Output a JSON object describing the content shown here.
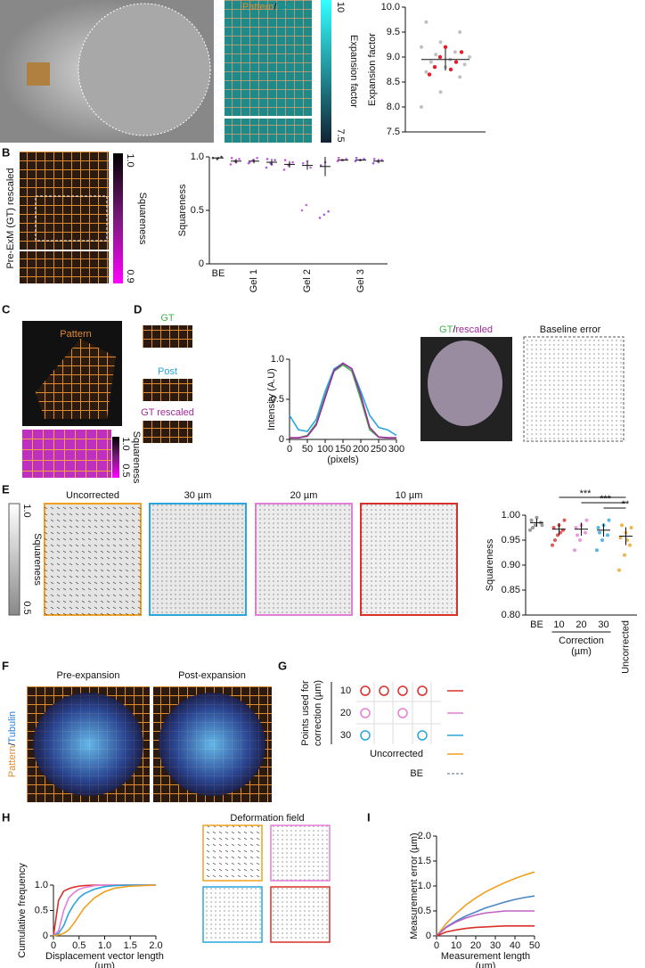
{
  "figure": {
    "panel_letters": [
      "A",
      "B",
      "C",
      "D",
      "E",
      "F",
      "G",
      "H",
      "I"
    ],
    "A": {
      "overlay": [
        "Pattern",
        "/",
        "ExF"
      ],
      "colorbar": {
        "label": "Expansion factor",
        "lim": [
          7.5,
          10
        ],
        "ticks": [
          7.5,
          10
        ]
      }
    },
    "B": {
      "image_label": "Pre-ExM (GT) rescaled",
      "colorbar": {
        "label": "Squareness",
        "lim": [
          0.9,
          1
        ],
        "ticks": [
          0.9,
          {
            "value": 1,
            "label": "1.0"
          }
        ]
      }
    },
    "C": {
      "image_label": "Pattern",
      "colorbar": {
        "label": "Squareness",
        "lim": [
          0.5,
          1
        ],
        "ticks": [
          0.5,
          {
            "value": 1,
            "label": "1.0"
          }
        ]
      }
    },
    "D": {
      "strip_labels": [
        "GT",
        "Post",
        "GT rescaled"
      ],
      "overlay": [
        "GT",
        "/",
        "rescaled"
      ],
      "baseline_title": "Baseline error"
    },
    "E": {
      "colorbar": {
        "label": "Squareness",
        "lim": [
          0.5,
          1
        ],
        "ticks": [
          0.5,
          {
            "value": 1,
            "label": "1.0"
          }
        ]
      },
      "field_titles": [
        "Uncorrected",
        "30 µm",
        "20 µm",
        "10 µm"
      ]
    },
    "F": {
      "titles": [
        "Pre-expansion",
        "Post-expansion"
      ],
      "side_label": [
        "Pattern",
        "/",
        "Tubulin"
      ]
    },
    "G": {
      "title": [
        "Points used for",
        "correction (µm)"
      ],
      "rows": [
        {
          "label": 10,
          "color": "#d9302a"
        },
        {
          "label": 20,
          "color": "#e37fd6"
        },
        {
          "label": 30,
          "color": "#2aa6dc"
        },
        {
          "label": "Uncorrected",
          "color": "#f0a020"
        },
        {
          "label": "BE",
          "color": "#8a9ab0"
        }
      ]
    },
    "H": {
      "field_title": "Deformation field"
    }
  },
  "chart_data": [
    {
      "type": "strip",
      "ylabel": "Expansion factor",
      "ylim": [
        7.5,
        10
      ],
      "yticks": [
        7.5,
        {
          "value": 8,
          "label": "8.0"
        },
        8.5,
        {
          "value": 9,
          "label": "9.0"
        },
        9.5,
        {
          "value": 10,
          "label": "10.0"
        }
      ],
      "categories": [
        null
      ],
      "values": [
        8.95
      ],
      "errors": [
        0.22
      ],
      "colors": [
        "#b0b0b0"
      ],
      "points": [
        [
          8.0,
          8.3,
          8.6,
          8.7,
          8.8,
          8.85,
          8.9,
          8.95,
          9.0,
          9.05,
          9.1,
          9.2,
          9.3,
          9.5,
          9.7
        ]
      ],
      "highlight_points": [
        8.65,
        8.75,
        8.8,
        8.9,
        9.0,
        9.1,
        9.2
      ],
      "highlight_color": "#e0202a"
    },
    {
      "type": "strip",
      "ylabel": "Squareness",
      "ylim": [
        0,
        1
      ],
      "yticks": [
        0,
        0.5,
        {
          "value": 1,
          "label": "1.0"
        }
      ],
      "categories": [
        "BE",
        null,
        "Gel 1",
        null,
        null,
        "Gel 2",
        null,
        null,
        "Gel 3",
        null
      ],
      "values": [
        0.99,
        0.96,
        0.96,
        0.95,
        0.93,
        0.92,
        0.91,
        0.97,
        0.97,
        0.96
      ],
      "errors": [
        0.01,
        0.02,
        0.02,
        0.03,
        0.03,
        0.04,
        0.09,
        0.01,
        0.01,
        0.02
      ],
      "colors": [
        "#222222",
        "#c030d0",
        "#b040e0",
        "#9a30e0",
        "#c030d0",
        "#b040e0",
        "#9a30e0",
        "#c030d0",
        "#8a30d8",
        "#9a30e0"
      ],
      "points": [
        [
          0.99,
          0.98,
          1.0
        ],
        [
          0.93,
          0.96,
          0.98,
          0.99,
          0.95
        ],
        [
          0.94,
          0.97,
          0.99,
          0.95,
          0.96
        ],
        [
          0.9,
          0.94,
          0.97,
          0.98,
          0.93
        ],
        [
          0.88,
          0.92,
          0.95,
          0.97,
          0.93
        ],
        [
          0.5,
          0.55,
          0.9,
          0.94,
          0.96
        ],
        [
          0.43,
          0.46,
          0.49,
          0.92,
          0.95
        ],
        [
          0.96,
          0.97,
          0.98,
          0.99
        ],
        [
          0.96,
          0.97,
          0.98,
          0.99
        ],
        [
          0.94,
          0.96,
          0.97,
          0.98
        ]
      ]
    },
    {
      "type": "line",
      "ylabel": "Intensity (A.U)",
      "xlabel": [
        "(pixels)"
      ],
      "xlim": [
        0,
        300
      ],
      "ylim": [
        0,
        1
      ],
      "xticks": [
        0,
        50,
        100,
        150,
        200,
        250,
        300
      ],
      "yticks": [
        0,
        0.5,
        {
          "value": 1,
          "label": "1.0"
        }
      ],
      "x": [
        0,
        25,
        50,
        75,
        100,
        125,
        150,
        175,
        200,
        225,
        250,
        275,
        300
      ],
      "series": [
        {
          "color": "#3cb44b",
          "values": [
            0.02,
            0.02,
            0.05,
            0.2,
            0.55,
            0.85,
            0.93,
            0.85,
            0.5,
            0.12,
            0.03,
            0.02,
            0.02
          ]
        },
        {
          "color": "#2aa6dc",
          "values": [
            0.3,
            0.12,
            0.1,
            0.25,
            0.6,
            0.88,
            0.95,
            0.88,
            0.6,
            0.3,
            0.15,
            0.12,
            0.05
          ]
        },
        {
          "color": "#a02a9a",
          "values": [
            0.02,
            0.02,
            0.04,
            0.18,
            0.52,
            0.86,
            0.95,
            0.88,
            0.55,
            0.15,
            0.03,
            0.02,
            0.02
          ]
        }
      ]
    },
    {
      "type": "strip",
      "ylabel": "Squareness",
      "xlabel": [
        "Correction",
        "(µm)"
      ],
      "ylim": [
        0.8,
        1
      ],
      "yticks": [
        {
          "value": 0.8,
          "label": "0.80"
        },
        0.85,
        {
          "value": 0.9,
          "label": "0.90"
        },
        0.95,
        {
          "value": 1,
          "label": "1.00"
        }
      ],
      "categories": [
        "BE",
        "10",
        "20",
        "30",
        "Uncorrected"
      ],
      "values": [
        0.985,
        0.972,
        0.972,
        0.97,
        0.958
      ],
      "errors": [
        0.008,
        0.012,
        0.013,
        0.013,
        0.018
      ],
      "colors": [
        "#808080",
        "#d9302a",
        "#e37fd6",
        "#2aa6dc",
        "#f0a020"
      ],
      "points": [
        [
          0.97,
          0.98,
          0.985,
          0.99,
          0.995,
          0.98,
          0.975
        ],
        [
          0.94,
          0.96,
          0.97,
          0.975,
          0.98,
          0.99,
          0.95,
          0.965
        ],
        [
          0.93,
          0.95,
          0.965,
          0.975,
          0.98,
          0.99,
          0.96
        ],
        [
          0.93,
          0.95,
          0.96,
          0.975,
          0.98,
          0.99,
          0.965
        ],
        [
          0.89,
          0.92,
          0.94,
          0.955,
          0.965,
          0.975,
          0.98,
          0.95
        ]
      ],
      "significance": [
        {
          "pair": [
            "10",
            "Uncorrected"
          ],
          "label": "***"
        },
        {
          "pair": [
            "20",
            "Uncorrected"
          ],
          "label": "***"
        },
        {
          "pair": [
            "30",
            "Uncorrected"
          ],
          "label": "**"
        }
      ]
    },
    {
      "type": "line",
      "ylabel": "Cumulative frequency",
      "xlabel": [
        "Displacement vector length",
        "(µm)"
      ],
      "xlim": [
        0,
        2
      ],
      "ylim": [
        0,
        1
      ],
      "xticks": [
        0,
        0.5,
        {
          "value": 1,
          "label": "1.0"
        },
        1.5,
        {
          "value": 2,
          "label": "2.0"
        }
      ],
      "yticks": [
        0,
        0.5,
        {
          "value": 1,
          "label": "1.0"
        }
      ],
      "x": [
        0,
        0.1,
        0.2,
        0.3,
        0.4,
        0.5,
        0.6,
        0.8,
        1.0,
        1.2,
        1.5,
        2.0
      ],
      "series": [
        {
          "color": "#d9302a",
          "values": [
            0,
            0.7,
            0.88,
            0.93,
            0.96,
            0.98,
            0.99,
            1,
            1,
            1,
            1,
            1
          ]
        },
        {
          "color": "#e37fd6",
          "values": [
            0,
            0.1,
            0.5,
            0.75,
            0.85,
            0.92,
            0.95,
            0.99,
            1,
            1,
            1,
            1
          ]
        },
        {
          "color": "#2aa6dc",
          "values": [
            0,
            0.05,
            0.2,
            0.45,
            0.62,
            0.75,
            0.83,
            0.92,
            0.97,
            0.99,
            1,
            1
          ]
        },
        {
          "color": "#f0a020",
          "values": [
            0,
            0.02,
            0.05,
            0.12,
            0.25,
            0.4,
            0.55,
            0.75,
            0.87,
            0.94,
            0.98,
            1
          ]
        }
      ]
    },
    {
      "type": "line",
      "ylabel": "Measurement error (µm)",
      "xlabel": [
        "Measurement length",
        "(µm)"
      ],
      "xlim": [
        0,
        50
      ],
      "ylim": [
        0,
        2
      ],
      "xticks": [
        0,
        10,
        20,
        30,
        40,
        50
      ],
      "yticks": [
        0,
        0.5,
        {
          "value": 1,
          "label": "1.0"
        },
        1.5,
        {
          "value": 2,
          "label": "2.0"
        }
      ],
      "x": [
        0,
        5,
        10,
        15,
        20,
        25,
        30,
        35,
        40,
        45,
        50
      ],
      "series": [
        {
          "color": "#f0a020",
          "values": [
            0,
            0.25,
            0.45,
            0.62,
            0.76,
            0.88,
            0.98,
            1.07,
            1.15,
            1.22,
            1.28
          ]
        },
        {
          "color": "#4a86c8",
          "values": [
            0,
            0.18,
            0.3,
            0.4,
            0.48,
            0.56,
            0.62,
            0.68,
            0.73,
            0.77,
            0.8
          ]
        },
        {
          "color": "#c060c0",
          "values": [
            0,
            0.17,
            0.28,
            0.36,
            0.42,
            0.46,
            0.48,
            0.5,
            0.5,
            0.5,
            0.5
          ]
        },
        {
          "color": "#d9302a",
          "values": [
            0,
            0.08,
            0.12,
            0.15,
            0.17,
            0.18,
            0.19,
            0.2,
            0.2,
            0.2,
            0.2
          ]
        }
      ]
    }
  ]
}
